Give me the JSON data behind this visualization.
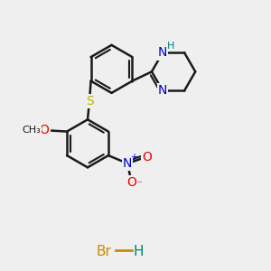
{
  "background_color": "#efefef",
  "bond_color": "#1a1a1a",
  "bond_width": 1.8,
  "atom_colors": {
    "S": "#b8b800",
    "N": "#0000cc",
    "O": "#ee0000",
    "H": "#008080",
    "Br": "#cc8800",
    "C": "#1a1a1a"
  },
  "font_size": 10,
  "small_font_size": 8
}
